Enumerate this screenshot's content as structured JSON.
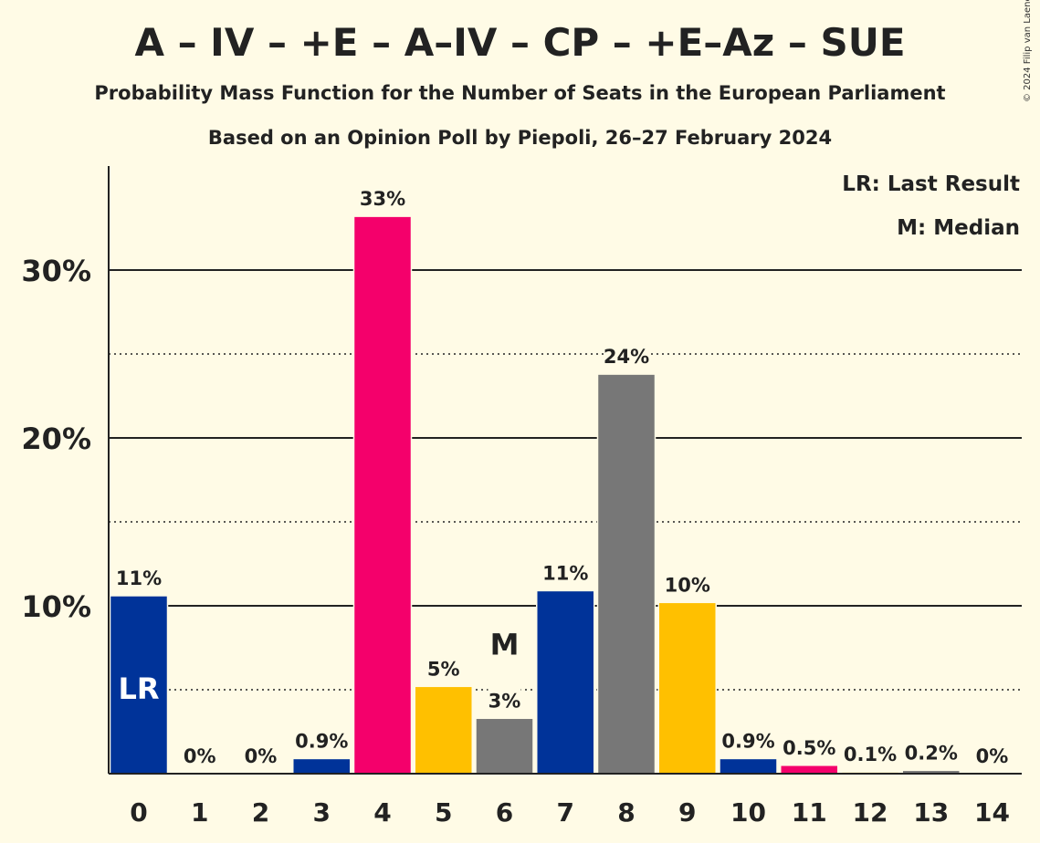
{
  "header": {
    "title": "A – IV – +E – A–IV – CP – +E–Az – SUE",
    "subtitle": "Probability Mass Function for the Number of Seats in the European Parliament",
    "subtitle2": "Based on an Opinion Poll by Piepoli, 26–27 February 2024",
    "copyright": "© 2024 Filip van Laenen"
  },
  "legend": {
    "last_result": "LR: Last Result",
    "median": "M: Median"
  },
  "chart_data": {
    "type": "bar",
    "title": "A – IV – +E – A–IV – CP – +E–Az – SUE",
    "xlabel": "",
    "ylabel": "",
    "categories": [
      "0",
      "1",
      "2",
      "3",
      "4",
      "5",
      "6",
      "7",
      "8",
      "9",
      "10",
      "11",
      "12",
      "13",
      "14"
    ],
    "values": [
      10.6,
      0,
      0,
      0.9,
      33.2,
      5.2,
      3.3,
      10.9,
      23.8,
      10.2,
      0.9,
      0.5,
      0.1,
      0.2,
      0
    ],
    "data_labels": [
      "11%",
      "0%",
      "0%",
      "0.9%",
      "33%",
      "5%",
      "3%",
      "11%",
      "24%",
      "10%",
      "0.9%",
      "0.5%",
      "0.1%",
      "0.2%",
      "0%"
    ],
    "colors": [
      "#003399",
      "#F4006B",
      "#FFC000",
      "#003399",
      "#F4006B",
      "#FFC000",
      "#777777",
      "#003399",
      "#777777",
      "#FFC000",
      "#003399",
      "#F4006B",
      "#FFC000",
      "#777777",
      "#003399"
    ],
    "ylim": [
      0,
      36
    ],
    "yticks": [
      10,
      20,
      30
    ],
    "ytick_labels": [
      "10%",
      "20%",
      "30%"
    ],
    "minor_grid": [
      5,
      15,
      25
    ],
    "grid": true,
    "legend_placement": "top-right",
    "last_result_index": 0,
    "last_result_marker": "LR",
    "median_index": 6,
    "median_marker": "M"
  }
}
